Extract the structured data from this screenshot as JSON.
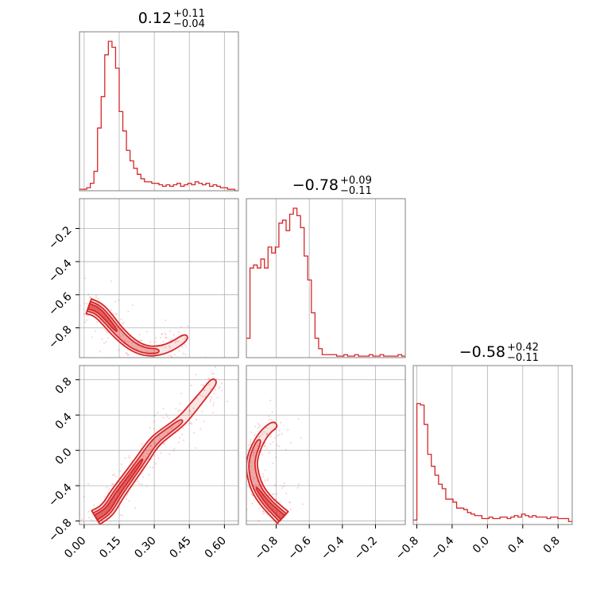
{
  "chart_data": {
    "type": "corner",
    "color": "#d62728",
    "parameters": [
      {
        "median": "0.12",
        "plus": "+0.11",
        "minus": "−0.04",
        "range": [
          -0.02,
          0.66
        ],
        "ticks": [
          0.0,
          0.15,
          0.3,
          0.45,
          0.6
        ],
        "tick_labels": [
          "0.00",
          "0.15",
          "0.30",
          "0.45",
          "0.60"
        ]
      },
      {
        "median": "−0.78",
        "plus": "+0.09",
        "minus": "−0.11",
        "range": [
          -0.98,
          -0.02
        ],
        "ticks": [
          -0.8,
          -0.6,
          -0.4,
          -0.2
        ],
        "tick_labels": [
          "−0.8",
          "−0.6",
          "−0.4",
          "−0.2"
        ]
      },
      {
        "median": "−0.58",
        "plus": "+0.42",
        "minus": "−0.11",
        "range": [
          -0.84,
          0.96
        ],
        "ticks": [
          -0.8,
          -0.4,
          0.0,
          0.4,
          0.8
        ],
        "tick_labels": [
          "−0.8",
          "−0.4",
          "0.0",
          "0.4",
          "0.8"
        ]
      }
    ],
    "histograms": [
      {
        "param": 0,
        "heights": [
          0.01,
          0.01,
          0.02,
          0.05,
          0.13,
          0.42,
          0.63,
          0.91,
          1.0,
          0.96,
          0.82,
          0.53,
          0.4,
          0.27,
          0.2,
          0.15,
          0.11,
          0.08,
          0.06,
          0.06,
          0.05,
          0.05,
          0.04,
          0.03,
          0.04,
          0.03,
          0.04,
          0.05,
          0.03,
          0.04,
          0.05,
          0.04,
          0.06,
          0.05,
          0.04,
          0.05,
          0.03,
          0.04,
          0.03,
          0.02,
          0.02,
          0.01,
          0.01,
          0.0
        ]
      },
      {
        "param": 1,
        "heights": [
          0.13,
          0.6,
          0.62,
          0.6,
          0.66,
          0.6,
          0.74,
          0.7,
          0.74,
          0.9,
          0.92,
          0.85,
          0.96,
          1.0,
          0.95,
          0.87,
          0.68,
          0.52,
          0.3,
          0.13,
          0.06,
          0.02,
          0.02,
          0.02,
          0.02,
          0.01,
          0.01,
          0.02,
          0.01,
          0.01,
          0.02,
          0.01,
          0.01,
          0.01,
          0.02,
          0.01,
          0.01,
          0.02,
          0.01,
          0.01,
          0.01,
          0.01,
          0.02,
          0.01
        ]
      },
      {
        "param": 2,
        "heights": [
          0.03,
          0.81,
          0.8,
          0.67,
          0.47,
          0.39,
          0.33,
          0.27,
          0.24,
          0.17,
          0.17,
          0.15,
          0.11,
          0.11,
          0.1,
          0.08,
          0.07,
          0.06,
          0.06,
          0.04,
          0.04,
          0.05,
          0.04,
          0.04,
          0.05,
          0.05,
          0.04,
          0.05,
          0.06,
          0.05,
          0.07,
          0.06,
          0.05,
          0.06,
          0.05,
          0.05,
          0.05,
          0.04,
          0.05,
          0.05,
          0.04,
          0.04,
          0.04,
          0.02
        ]
      }
    ],
    "contours": [
      {
        "x": 0,
        "y": 1,
        "ridge": [
          [
            0.02,
            -0.67
          ],
          [
            0.06,
            -0.69
          ],
          [
            0.1,
            -0.75
          ],
          [
            0.14,
            -0.82
          ],
          [
            0.2,
            -0.9
          ],
          [
            0.26,
            -0.94
          ],
          [
            0.32,
            -0.94
          ],
          [
            0.38,
            -0.91
          ],
          [
            0.44,
            -0.85
          ]
        ]
      },
      {
        "x": 0,
        "y": 2,
        "ridge": [
          [
            0.05,
            -0.76
          ],
          [
            0.1,
            -0.68
          ],
          [
            0.14,
            -0.5
          ],
          [
            0.19,
            -0.32
          ],
          [
            0.25,
            -0.1
          ],
          [
            0.3,
            0.1
          ],
          [
            0.36,
            0.22
          ],
          [
            0.42,
            0.34
          ],
          [
            0.47,
            0.5
          ],
          [
            0.52,
            0.66
          ],
          [
            0.56,
            0.8
          ]
        ]
      },
      {
        "x": 1,
        "y": 2,
        "ridge": [
          [
            -0.76,
            -0.76
          ],
          [
            -0.8,
            -0.69
          ],
          [
            -0.86,
            -0.58
          ],
          [
            -0.92,
            -0.42
          ],
          [
            -0.95,
            -0.2
          ],
          [
            -0.94,
            -0.05
          ],
          [
            -0.9,
            0.12
          ],
          [
            -0.85,
            0.24
          ],
          [
            -0.8,
            0.3
          ]
        ]
      }
    ]
  }
}
